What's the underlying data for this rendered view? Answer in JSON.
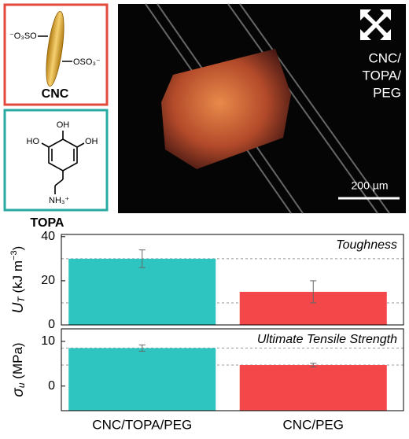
{
  "panels": {
    "cnc": {
      "label": "CNC",
      "left_group": "⁻O₃SO",
      "right_group": "OSO₃⁻"
    },
    "topa": {
      "label": "TOPA",
      "oh_top": "OH",
      "oh_left": "HO",
      "oh_right": "OH",
      "amine": "NH₃⁺"
    },
    "micrograph": {
      "sample_lines": [
        "CNC/",
        "TOPA/",
        "PEG"
      ],
      "scale_bar": "200 µm"
    }
  },
  "chart_data": [
    {
      "type": "bar",
      "annotation": "Toughness",
      "y_label": {
        "symbol": "U",
        "subscript": "T",
        "unit": " (kJ m",
        "unit_sup": "−3",
        "unit_end": ")"
      },
      "values": [
        30,
        15
      ],
      "errors": [
        4,
        5
      ],
      "colors": [
        "#2ec4c0",
        "#f4474a"
      ],
      "ylim": [
        0,
        41
      ],
      "yticks": [
        0,
        20,
        40
      ],
      "hlines": [
        10,
        30
      ]
    },
    {
      "type": "bar",
      "annotation": "Ultimate Tensile Strength",
      "y_label": {
        "symbol": "σ",
        "subscript": "u",
        "unit": " (MPa)",
        "unit_sup": null,
        "unit_end": null
      },
      "categories": [
        "CNC/TOPA/PEG",
        "CNC/PEG"
      ],
      "values": [
        8.5,
        4.7
      ],
      "errors": [
        0.7,
        0.4
      ],
      "colors": [
        "#2ec4c0",
        "#f4474a"
      ],
      "ylim": [
        -5.5,
        12.8
      ],
      "yticks": [
        0,
        10
      ],
      "hlines": [
        4.7,
        8.5
      ]
    }
  ]
}
